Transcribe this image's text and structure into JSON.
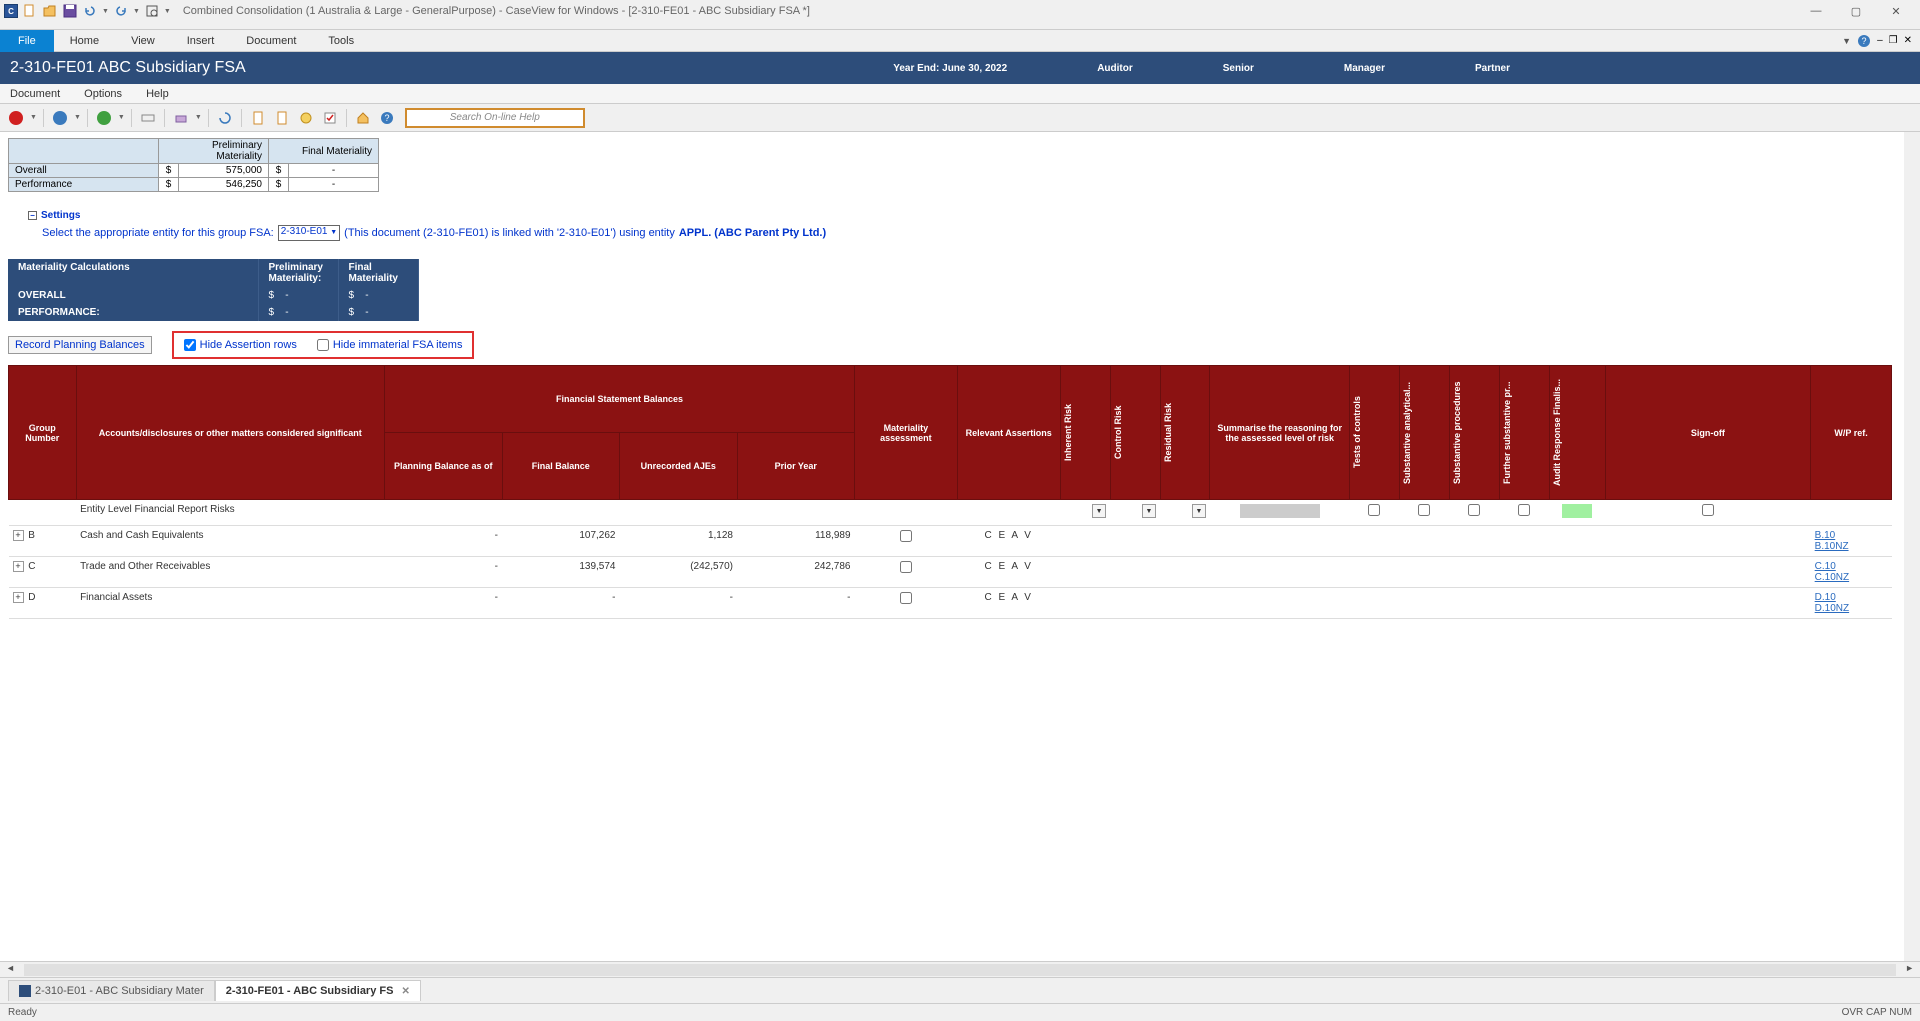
{
  "titlebar": {
    "app_icon_letter": "C",
    "title": "Combined Consolidation (1 Australia & Large - GeneralPurpose) - CaseView for Windows - [2-310-FE01 - ABC Subsidiary FSA *]"
  },
  "ribbon": {
    "file": "File",
    "tabs": [
      "Home",
      "View",
      "Insert",
      "Document",
      "Tools"
    ]
  },
  "doc_header": {
    "title": "2-310-FE01 ABC Subsidiary FSA",
    "year_end_label": "Year End:",
    "year_end": "June 30, 2022",
    "roles": [
      "Auditor",
      "Senior",
      "Manager",
      "Partner"
    ]
  },
  "sub_menu": [
    "Document",
    "Options",
    "Help"
  ],
  "toolbar": {
    "search_placeholder": "Search On-line Help"
  },
  "mat_summary": {
    "col1": "Preliminary Materiality",
    "col2": "Final Materiality",
    "rows": [
      {
        "label": "Overall",
        "sym1": "$",
        "v1": "575,000",
        "sym2": "$",
        "v2": "-"
      },
      {
        "label": "Performance",
        "sym1": "$",
        "v1": "546,250",
        "sym2": "$",
        "v2": "-"
      }
    ]
  },
  "settings": {
    "header": "Settings",
    "text1": "Select the appropriate entity for this group FSA:",
    "entity": "2-310-E01",
    "text2": "(This document (2-310-FE01) is linked with '2-310-E01') using entity",
    "entity_bold": "APPL. (ABC Parent Pty Ltd.)"
  },
  "mat_calc": {
    "title": "Materiality Calculations",
    "prelim": "Preliminary Materiality:",
    "final": "Final Materiality",
    "overall": "OVERALL",
    "performance": "PERFORMANCE:",
    "sym": "$",
    "dash": "-"
  },
  "controls": {
    "record_btn": "Record Planning Balances",
    "cb1": "Hide Assertion rows",
    "cb2": "Hide immaterial FSA items"
  },
  "table": {
    "headers": {
      "group_num": "Group Number",
      "accounts": "Accounts/disclosures or other matters considered significant",
      "fsb_super": "Financial Statement Balances",
      "planning": "Planning Balance as of",
      "final": "Final Balance",
      "ajes": "Unrecorded AJEs",
      "prior": "Prior Year",
      "materiality": "Materiality assessment",
      "relevant": "Relevant Assertions",
      "inherent": "Inherent Risk",
      "control": "Control Risk",
      "residual": "Residual Risk",
      "summarise": "Summarise the reasoning for the assessed level of risk",
      "toc": "Tests of controls",
      "sa": "Substantive analytical...",
      "sp": "Substantive procedures",
      "fsp": "Further substantive pr...",
      "arf": "Audit Response Finalis...",
      "signoff": "Sign-off",
      "wp": "W/P ref."
    },
    "rows": [
      {
        "group": "",
        "name": "Entity Level Financial Report Risks",
        "planning": "",
        "final": "",
        "ajes": "",
        "prior": "",
        "mat": "",
        "ceav": "",
        "dd": true,
        "grey": true,
        "green": true,
        "cb": true,
        "wp": []
      },
      {
        "group": "B",
        "name": "Cash and Cash Equivalents",
        "planning": "-",
        "final": "107,262",
        "ajes": "1,128",
        "prior": "118,989",
        "mat": "cb",
        "ceav": "C E A V",
        "dd": false,
        "grey": false,
        "green": false,
        "cb": false,
        "wp": [
          "B.10",
          "B.10NZ"
        ]
      },
      {
        "group": "C",
        "name": "Trade and Other Receivables",
        "planning": "-",
        "final": "139,574",
        "ajes": "(242,570)",
        "prior": "242,786",
        "mat": "cb",
        "ceav": "C E A V",
        "dd": false,
        "grey": false,
        "green": false,
        "cb": false,
        "wp": [
          "C.10",
          "C.10NZ"
        ]
      },
      {
        "group": "D",
        "name": "Financial Assets",
        "planning": "-",
        "final": "-",
        "ajes": "-",
        "prior": "-",
        "mat": "cb",
        "ceav": "C E A V",
        "dd": false,
        "grey": false,
        "green": false,
        "cb": false,
        "wp": [
          "D.10",
          "D.10NZ"
        ]
      }
    ]
  },
  "doc_tabs": {
    "tab1": "2-310-E01 - ABC Subsidiary Mater",
    "tab2": "2-310-FE01 - ABC Subsidiary FS"
  },
  "status": {
    "ready": "Ready",
    "right": "OVR CAP NUM"
  }
}
